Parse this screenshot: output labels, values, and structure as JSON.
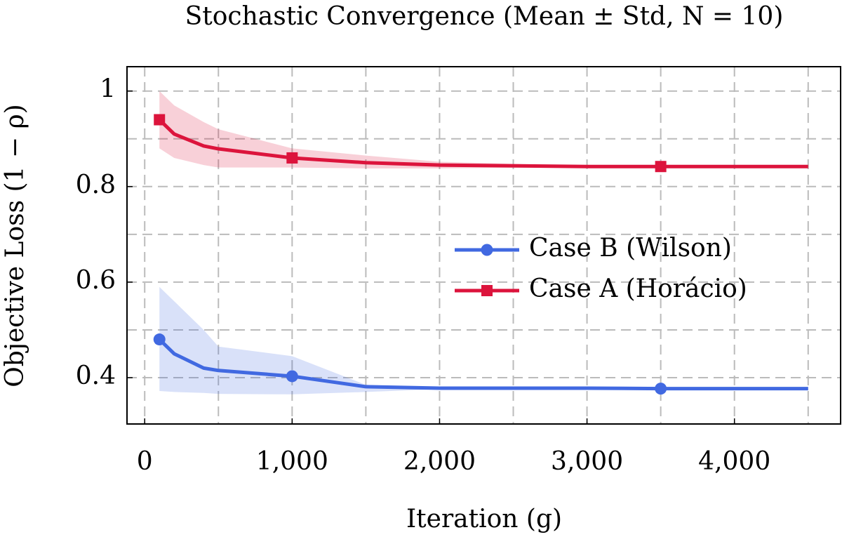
{
  "chart_data": {
    "type": "line",
    "title": "Stochastic Convergence (Mean ± Std, N = 10)",
    "xlabel": "Iteration (g)",
    "ylabel": "Objective Loss (1 − ρ)",
    "x": [
      100,
      200,
      400,
      500,
      1000,
      1500,
      2000,
      3000,
      3500,
      4500
    ],
    "series": [
      {
        "name": "Case B (Wilson)",
        "color": "#4169e1",
        "marker": "circle",
        "values": [
          0.48,
          0.45,
          0.42,
          0.415,
          0.403,
          0.381,
          0.378,
          0.378,
          0.377,
          0.377
        ],
        "upper": [
          0.59,
          0.56,
          0.5,
          0.465,
          0.445,
          0.385,
          0.379,
          0.378,
          0.377,
          0.377
        ],
        "lower": [
          0.372,
          0.37,
          0.368,
          0.366,
          0.365,
          0.37,
          0.376,
          0.377,
          0.377,
          0.377
        ]
      },
      {
        "name": "Case A (Horácio)",
        "color": "#dc143c",
        "marker": "square",
        "values": [
          0.94,
          0.91,
          0.885,
          0.879,
          0.86,
          0.85,
          0.845,
          0.842,
          0.842,
          0.842
        ],
        "upper": [
          1.0,
          0.97,
          0.935,
          0.92,
          0.88,
          0.865,
          0.852,
          0.843,
          0.842,
          0.842
        ],
        "lower": [
          0.88,
          0.86,
          0.845,
          0.84,
          0.84,
          0.838,
          0.838,
          0.841,
          0.842,
          0.842
        ]
      }
    ],
    "markers_at": [
      100,
      1000,
      3500
    ],
    "xlim": [
      -120,
      4720
    ],
    "ylim": [
      0.303,
      1.051
    ],
    "xticks": [
      0,
      {
        "value": 1000,
        "label": "1,000"
      },
      {
        "value": 2000,
        "label": "2,000"
      },
      {
        "value": 3000,
        "label": "3,000"
      },
      {
        "value": 4000,
        "label": "4,000"
      }
    ],
    "yticks": [
      0.4,
      0.6,
      0.8,
      1
    ],
    "minor_xticks": [
      500,
      1500,
      2500,
      3500,
      4500
    ],
    "minor_yticks": [
      0.5,
      0.7,
      0.9
    ],
    "grid": true,
    "legend": "east"
  }
}
